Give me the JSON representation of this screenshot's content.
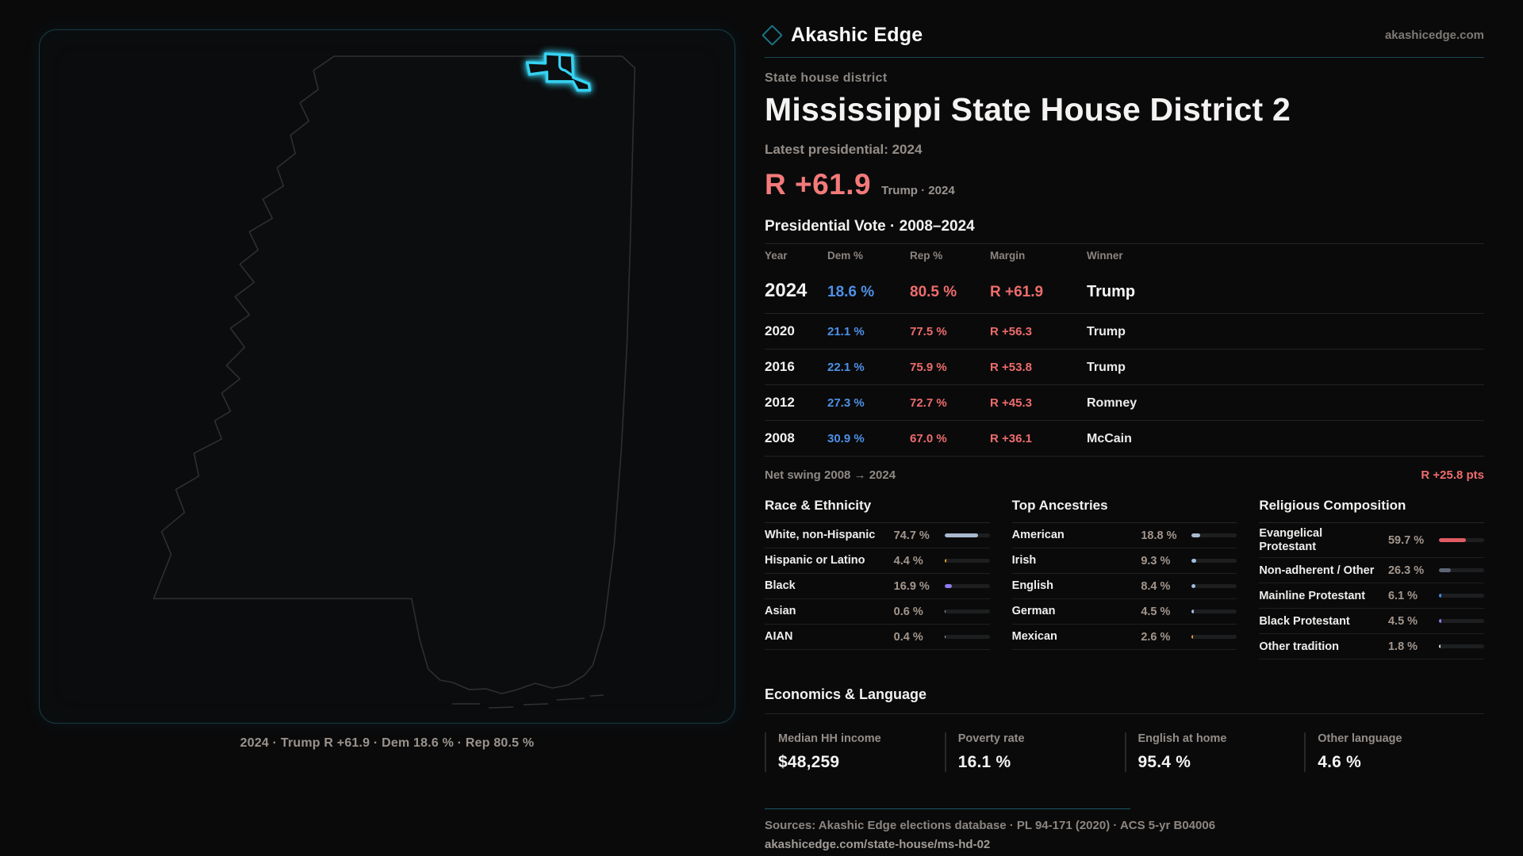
{
  "brand": {
    "name": "Akashic Edge",
    "domain": "akashicedge.com"
  },
  "header": {
    "kicker": "State house district",
    "title": "Mississippi State House District 2",
    "latest_label": "Latest presidential: 2024",
    "headline_margin": "R +61.9",
    "headline_sub": "Trump · 2024"
  },
  "map": {
    "caption": "2024 · Trump R +61.9 · Dem 18.6 % · Rep 80.5 %"
  },
  "colors": {
    "dem_blue": "#4e90e6",
    "rep_red": "#ee6c6c",
    "district_cyan": "#35d3f2"
  },
  "vote_table": {
    "title": "Presidential Vote · 2008–2024",
    "columns": [
      "Year",
      "Dem %",
      "Rep %",
      "Margin",
      "Winner"
    ],
    "rows": [
      {
        "year": "2024",
        "dem": "18.6 %",
        "rep": "80.5 %",
        "margin": "R +61.9",
        "winner": "Trump"
      },
      {
        "year": "2020",
        "dem": "21.1 %",
        "rep": "77.5 %",
        "margin": "R +56.3",
        "winner": "Trump"
      },
      {
        "year": "2016",
        "dem": "22.1 %",
        "rep": "75.9 %",
        "margin": "R +53.8",
        "winner": "Trump"
      },
      {
        "year": "2012",
        "dem": "27.3 %",
        "rep": "72.7 %",
        "margin": "R +45.3",
        "winner": "Romney"
      },
      {
        "year": "2008",
        "dem": "30.9 %",
        "rep": "67.0 %",
        "margin": "R +36.1",
        "winner": "McCain"
      }
    ],
    "swing_label": "Net swing 2008 → 2024",
    "swing_value": "R +25.8 pts"
  },
  "demographics": {
    "sections": [
      {
        "title": "Race & Ethnicity",
        "rows": [
          {
            "label": "White, non-Hispanic",
            "value": "74.7 %",
            "pct": 74.7,
            "color": "#a9b9cf"
          },
          {
            "label": "Hispanic or Latino",
            "value": "4.4 %",
            "pct": 4.4,
            "color": "#e8a23c"
          },
          {
            "label": "Black",
            "value": "16.9 %",
            "pct": 16.9,
            "color": "#8f7bee"
          },
          {
            "label": "Asian",
            "value": "0.6 %",
            "pct": 0.6,
            "color": "#a9b9cf"
          },
          {
            "label": "AIAN",
            "value": "0.4 %",
            "pct": 0.4,
            "color": "#a9b9cf"
          }
        ]
      },
      {
        "title": "Top Ancestries",
        "rows": [
          {
            "label": "American",
            "value": "18.8 %",
            "pct": 18.8,
            "color": "#a9b9cf"
          },
          {
            "label": "Irish",
            "value": "9.3 %",
            "pct": 9.3,
            "color": "#9fc0e0"
          },
          {
            "label": "English",
            "value": "8.4 %",
            "pct": 8.4,
            "color": "#9fc0e0"
          },
          {
            "label": "German",
            "value": "4.5 %",
            "pct": 4.5,
            "color": "#9fc0e0"
          },
          {
            "label": "Mexican",
            "value": "2.6 %",
            "pct": 2.6,
            "color": "#e8a23c"
          }
        ]
      },
      {
        "title": "Religious Composition",
        "rows": [
          {
            "label": "Evangelical Protestant",
            "value": "59.7 %",
            "pct": 59.7,
            "color": "#e05c64"
          },
          {
            "label": "Non-adherent / Other",
            "value": "26.3 %",
            "pct": 26.3,
            "color": "#5c6674"
          },
          {
            "label": "Mainline Protestant",
            "value": "6.1 %",
            "pct": 6.1,
            "color": "#3f8ae8"
          },
          {
            "label": "Black Protestant",
            "value": "4.5 %",
            "pct": 4.5,
            "color": "#8f7bee"
          },
          {
            "label": "Other tradition",
            "value": "1.8 %",
            "pct": 1.8,
            "color": "#d9d9d9"
          }
        ]
      }
    ]
  },
  "economics": {
    "title": "Economics & Language",
    "stats": [
      {
        "label": "Median HH income",
        "value": "$48,259"
      },
      {
        "label": "Poverty rate",
        "value": "16.1 %"
      },
      {
        "label": "English at home",
        "value": "95.4 %"
      },
      {
        "label": "Other language",
        "value": "4.6 %"
      }
    ]
  },
  "footer": {
    "sources": "Sources: Akashic Edge elections database · PL 94-171 (2020) · ACS 5-yr B04006",
    "url": "akashicedge.com/state-house/ms-hd-02"
  }
}
